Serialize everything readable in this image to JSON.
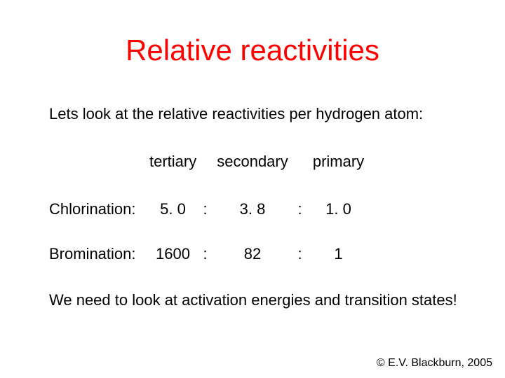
{
  "title": "Relative reactivities",
  "intro": "Lets look at the relative reactivities per hydrogen atom:",
  "table": {
    "headers": {
      "tertiary": "tertiary",
      "secondary": "secondary",
      "primary": "primary"
    },
    "rows": [
      {
        "label": "Chlorination:",
        "tertiary": "5. 0",
        "sep1": ":",
        "secondary": "3. 8",
        "sep2": ":",
        "primary": "1. 0"
      },
      {
        "label": "Bromination:",
        "tertiary": "1600",
        "sep1": ":",
        "secondary": "82",
        "sep2": ":",
        "primary": "1"
      }
    ]
  },
  "conclusion": "We need to look at activation energies and transition states!",
  "footer": "© E.V. Blackburn, 2005",
  "colors": {
    "title": "#ff0000",
    "text": "#000000",
    "background": "#ffffff"
  },
  "font": {
    "title_size_pt": 42,
    "body_size_pt": 22,
    "footer_size_pt": 16,
    "family": "Arial"
  }
}
